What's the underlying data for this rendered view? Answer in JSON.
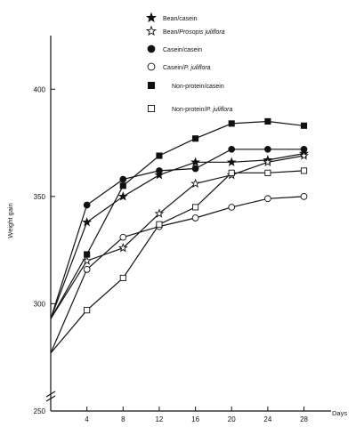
{
  "chart_data": {
    "type": "line",
    "title": "",
    "xlabel": "Days",
    "ylabel": "Weight gain",
    "x": [
      0,
      4,
      8,
      12,
      16,
      20,
      24,
      28
    ],
    "xticks": [
      "4",
      "8",
      "12",
      "16",
      "20",
      "24",
      "28"
    ],
    "xlim": [
      0,
      31
    ],
    "ylim": [
      250,
      425
    ],
    "yticks": [
      "250",
      "300",
      "350",
      "400"
    ],
    "axis_break": true,
    "grid": false,
    "legend_position": "top",
    "series": [
      {
        "name": "Bean/casein",
        "prefix": "Bean/casein",
        "italic": "",
        "marker": "star-filled",
        "values": [
          293,
          338,
          350,
          360,
          366,
          366,
          367,
          370
        ]
      },
      {
        "name": "Bean/Prosopis juliflora",
        "prefix": "Bean/",
        "italic": "Prosopis juliflora",
        "marker": "star-open",
        "values": [
          293,
          320,
          326,
          342,
          356,
          360,
          366,
          369
        ]
      },
      {
        "name": "Casein/casein",
        "prefix": "Casein/casein",
        "italic": "",
        "marker": "circle-filled",
        "values": [
          293,
          346,
          358,
          362,
          363,
          372,
          372,
          372
        ]
      },
      {
        "name": "Casein/P. juliflora",
        "prefix": "Casein/",
        "italic": "P. juliflora",
        "marker": "circle-open",
        "values": [
          277,
          316,
          331,
          336,
          340,
          345,
          349,
          350
        ]
      },
      {
        "name": "Non-protein/casein",
        "prefix": "Non-protein/casein",
        "italic": "",
        "marker": "square-filled",
        "values": [
          293,
          323,
          355,
          369,
          377,
          384,
          385,
          383
        ]
      },
      {
        "name": "Non-protein/P. juliflora",
        "prefix": "Non-protein/",
        "italic": "P. juliflora",
        "marker": "square-open",
        "values": [
          277,
          297,
          312,
          337,
          345,
          361,
          361,
          362
        ]
      }
    ]
  }
}
